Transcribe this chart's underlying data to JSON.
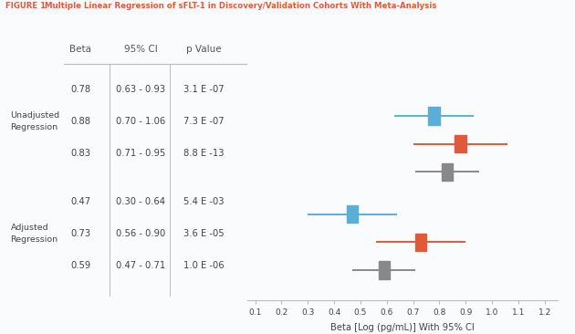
{
  "title_figure": "FIGURE 1",
  "title_rest": "  Multiple Linear Regression of sFLT-1 in Discovery/Validation Cohorts With Meta-Analysis",
  "xlabel": "Beta [Log (pg/mL)] With 95% CI",
  "col_headers": [
    "Beta",
    "95% CI",
    "p Value"
  ],
  "rows": [
    {
      "beta": 0.78,
      "ci": "0.63 - 0.93",
      "pval": "3.1 E -07",
      "lo": 0.63,
      "hi": 0.93,
      "color": "#5BAFD6"
    },
    {
      "beta": 0.88,
      "ci": "0.70 - 1.06",
      "pval": "7.3 E -07",
      "lo": 0.7,
      "hi": 1.06,
      "color": "#E05A3A"
    },
    {
      "beta": 0.83,
      "ci": "0.71 - 0.95",
      "pval": "8.8 E -13",
      "lo": 0.71,
      "hi": 0.95,
      "color": "#888888"
    },
    {
      "beta": 0.47,
      "ci": "0.30 - 0.64",
      "pval": "5.4 E -03",
      "lo": 0.3,
      "hi": 0.64,
      "color": "#5BAFD6"
    },
    {
      "beta": 0.73,
      "ci": "0.56 - 0.90",
      "pval": "3.6 E -05",
      "lo": 0.56,
      "hi": 0.9,
      "color": "#E05A3A"
    },
    {
      "beta": 0.59,
      "ci": "0.47 - 0.71",
      "pval": "1.0 E -06",
      "lo": 0.47,
      "hi": 0.71,
      "color": "#888888"
    }
  ],
  "group_labels": [
    {
      "text": "Unadjusted\nRegression",
      "rows": [
        0,
        1,
        2
      ]
    },
    {
      "text": "Adjusted\nRegression",
      "rows": [
        3,
        4,
        5
      ]
    }
  ],
  "xlim": [
    0.07,
    1.25
  ],
  "xticks": [
    0.1,
    0.2,
    0.3,
    0.4,
    0.5,
    0.6,
    0.7,
    0.8,
    0.9,
    1.0,
    1.1,
    1.2
  ],
  "xtick_labels": [
    "0.1",
    "0.2",
    "0.3",
    "0.4",
    "0.5",
    "0.6",
    "0.7",
    "0.8",
    "0.9",
    "1.0",
    "1.1",
    "1.2"
  ],
  "discovery_color": "#5BAFD6",
  "validation_color": "#E05A3A",
  "meta_color": "#888888",
  "title_color": "#E05A3A",
  "header_color": "#555555",
  "text_color": "#444444",
  "bg_color": "#FAFBFC",
  "divider_color": "#BBBBBB",
  "linewidth": 1.4
}
